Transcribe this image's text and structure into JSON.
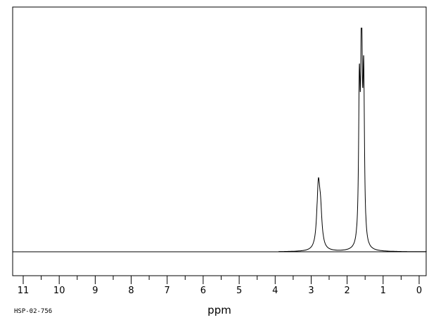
{
  "chart_data": {
    "type": "line",
    "title": "",
    "xlabel": "ppm",
    "ylabel": "",
    "xlim": [
      11.25,
      -0.2
    ],
    "x_reversed": true,
    "ylim": [
      0,
      1
    ],
    "grid": false,
    "ticks": [
      "11",
      "10",
      "9",
      "8",
      "7",
      "6",
      "5",
      "4",
      "3",
      "2",
      "1",
      "0"
    ],
    "peaks": [
      {
        "center": 2.8,
        "height": 0.27,
        "width": 0.05
      },
      {
        "center": 2.74,
        "height": 0.14,
        "width": 0.05
      },
      {
        "center": 1.66,
        "height": 0.66,
        "width": 0.025
      },
      {
        "center": 1.6,
        "height": 1.0,
        "width": 0.025
      },
      {
        "center": 1.54,
        "height": 0.7,
        "width": 0.025
      }
    ],
    "series": [
      {
        "values_description": "1H NMR spectrum",
        "points": [
          [
            11.25,
            0
          ],
          [
            4.0,
            0
          ],
          [
            3.5,
            0.003
          ],
          [
            3.0,
            0.01
          ],
          [
            2.9,
            0.05
          ],
          [
            2.84,
            0.15
          ],
          [
            2.8,
            0.27
          ],
          [
            2.77,
            0.18
          ],
          [
            2.74,
            0.14
          ],
          [
            2.7,
            0.06
          ],
          [
            2.6,
            0.01
          ],
          [
            2.2,
            0.004
          ],
          [
            1.9,
            0.01
          ],
          [
            1.75,
            0.06
          ],
          [
            1.7,
            0.22
          ],
          [
            1.66,
            0.66
          ],
          [
            1.64,
            0.35
          ],
          [
            1.6,
            1.0
          ],
          [
            1.57,
            0.4
          ],
          [
            1.54,
            0.7
          ],
          [
            1.5,
            0.1
          ],
          [
            1.4,
            0.02
          ],
          [
            1.2,
            0.005
          ],
          [
            1.0,
            0.002
          ],
          [
            -0.2,
            0
          ]
        ]
      }
    ]
  },
  "footer": {
    "sample_id": "HSP-02-756"
  }
}
